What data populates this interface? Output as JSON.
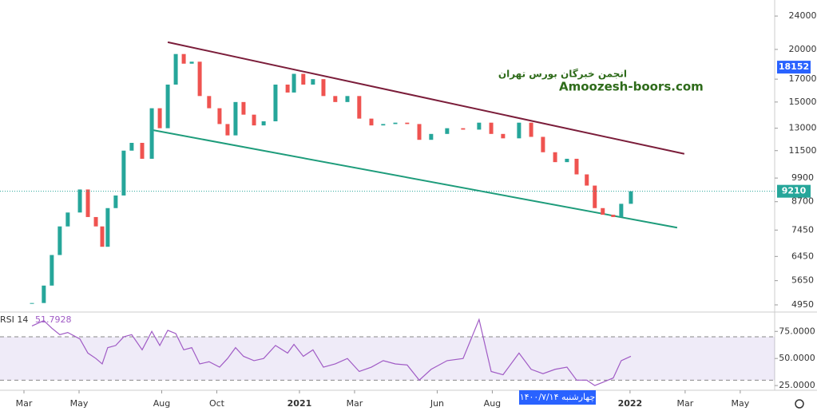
{
  "chart_data": [
    {
      "type": "candlestick",
      "x": [
        2.29,
        2.72,
        3.01,
        3.3,
        3.59,
        4.03,
        4.32,
        4.61,
        4.84,
        5.04,
        5.33,
        5.62,
        5.91,
        6.29,
        6.64,
        6.93,
        7.22,
        7.51,
        7.8,
        8.09,
        8.38,
        8.72,
        9.1,
        9.39,
        9.68,
        9.97,
        10.35,
        10.7,
        11.13,
        11.57,
        11.8,
        12.14,
        12.49,
        12.87,
        13.3,
        13.74,
        14.17,
        14.61,
        15.04,
        15.48,
        15.91,
        16.35,
        16.78,
        17.36,
        17.94,
        18.52,
        18.96,
        19.39,
        19.97,
        20.41,
        20.84,
        21.28,
        21.71,
        22.06,
        22.43,
        22.72,
        23.01,
        23.39,
        23.68,
        24.03
      ],
      "values": [
        5000,
        5500,
        6500,
        7600,
        8200,
        9300,
        8000,
        7600,
        6800,
        8400,
        9000,
        11500,
        12000,
        11000,
        14500,
        13000,
        16500,
        19500,
        18500,
        18700,
        15500,
        14500,
        13300,
        12500,
        15000,
        14000,
        13200,
        13500,
        16500,
        15800,
        17500,
        16500,
        17000,
        15500,
        15000,
        15500,
        13700,
        13200,
        13300,
        13400,
        13300,
        12200,
        12600,
        13000,
        12900,
        13400,
        12600,
        12300,
        13400,
        12400,
        11400,
        10800,
        11000,
        10100,
        9500,
        8400,
        8100,
        8000,
        8600,
        9210
      ],
      "up_color": "#26a69a",
      "down_color": "#ef5350",
      "log_scale": true,
      "ylim": [
        4780,
        26200
      ],
      "yticks": [
        4950,
        5650,
        6450,
        7450,
        8700,
        9900,
        11500,
        13000,
        15000,
        17000,
        20000,
        24000
      ],
      "xlim": [
        1.13,
        29.25
      ],
      "xticks": [
        {
          "value": 2,
          "label": "Mar"
        },
        {
          "value": 4,
          "label": "May"
        },
        {
          "value": 7,
          "label": "Aug"
        },
        {
          "value": 9,
          "label": "Oct"
        },
        {
          "value": 12,
          "label": "2021"
        },
        {
          "value": 14,
          "label": "Mar"
        },
        {
          "value": 17,
          "label": "Jun"
        },
        {
          "value": 19,
          "label": "Aug"
        },
        {
          "value": 24,
          "label": "2022"
        },
        {
          "value": 26,
          "label": "Mar"
        },
        {
          "value": 28,
          "label": "May"
        }
      ],
      "price_labels": [
        {
          "value": 18152,
          "color": "#2962ff"
        },
        {
          "value": 9210,
          "color": "#26a69a"
        }
      ],
      "trendlines": [
        {
          "color": "#7b1d3a",
          "x": [
            7.22,
            25.97
          ],
          "y": [
            20800,
            11300
          ]
        },
        {
          "color": "#1e9c7b",
          "x": [
            6.58,
            25.71
          ],
          "y": [
            12900,
            7550
          ]
        }
      ],
      "watermark": {
        "line1": "انجمن خبرگان بورس تهران",
        "line2": "Amoozesh-boors.com"
      },
      "crosshair_date": "چهارشنبه ۱۴۰۰/۷/۱۴"
    },
    {
      "type": "line",
      "name": "RSI 14",
      "last_value": 51.7928,
      "color": "#a05bc5",
      "x": [
        2.29,
        2.72,
        3.01,
        3.3,
        3.59,
        4.03,
        4.32,
        4.61,
        4.84,
        5.04,
        5.33,
        5.62,
        5.91,
        6.29,
        6.64,
        6.93,
        7.22,
        7.51,
        7.8,
        8.09,
        8.38,
        8.72,
        9.1,
        9.39,
        9.68,
        9.97,
        10.35,
        10.7,
        11.13,
        11.57,
        11.8,
        12.14,
        12.49,
        12.87,
        13.3,
        13.74,
        14.17,
        14.61,
        15.04,
        15.48,
        15.91,
        16.35,
        16.78,
        17.36,
        17.94,
        18.52,
        18.96,
        19.39,
        19.97,
        20.41,
        20.84,
        21.28,
        21.71,
        22.06,
        22.43,
        22.72,
        23.01,
        23.39,
        23.68,
        24.03
      ],
      "values": [
        80,
        85,
        78,
        72,
        74,
        68,
        55,
        50,
        45,
        60,
        62,
        70,
        72,
        58,
        75,
        62,
        76,
        73,
        58,
        60,
        45,
        47,
        42,
        50,
        60,
        52,
        48,
        50,
        62,
        55,
        63,
        52,
        58,
        42,
        45,
        50,
        38,
        42,
        48,
        45,
        44,
        30,
        40,
        48,
        50,
        86,
        38,
        35,
        55,
        40,
        36,
        40,
        42,
        30,
        30,
        25,
        28,
        32,
        48,
        52
      ],
      "xlim": [
        1.13,
        29.25
      ],
      "ylim": [
        21.4,
        91.4
      ],
      "yticks": [
        {
          "value": 25,
          "label": "25.0000"
        },
        {
          "value": 50,
          "label": "50.0000"
        },
        {
          "value": 75,
          "label": "75.0000"
        }
      ],
      "band": [
        30,
        70
      ]
    }
  ]
}
